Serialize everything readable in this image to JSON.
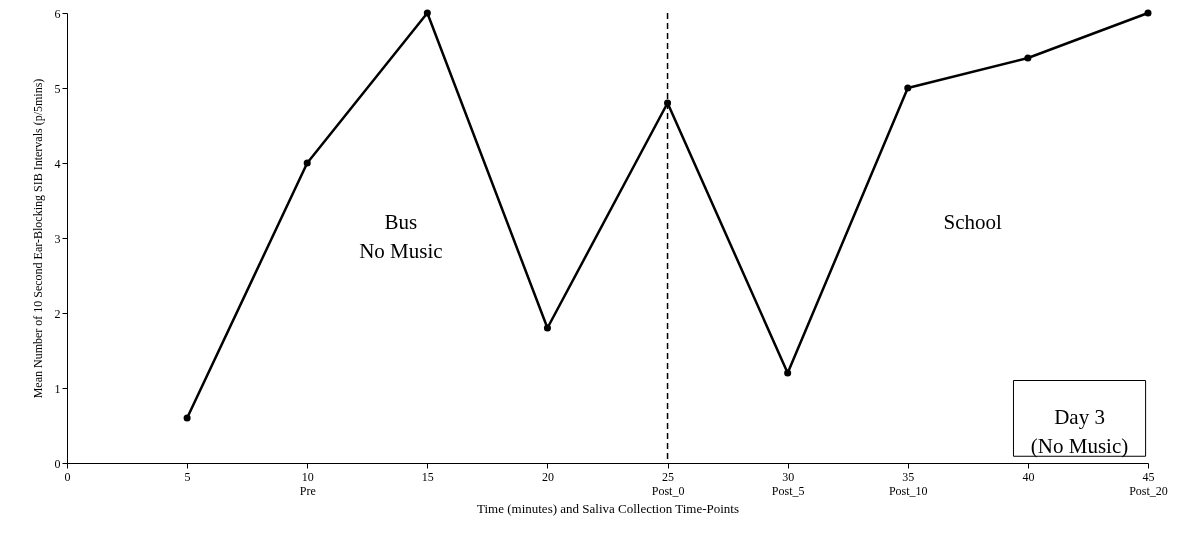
{
  "chart_data": {
    "type": "line",
    "xlabel": "Time (minutes) and Saliva Collection Time-Points",
    "ylabel": "Mean Number of 10 Second Ear-Blocking SIB Intervals (p/5mins)",
    "x": [
      5,
      10,
      15,
      20,
      25,
      30,
      35,
      40,
      45
    ],
    "series": [
      {
        "color": "#000000",
        "values": [
          0.6,
          4.0,
          6.0,
          1.8,
          4.8,
          1.2,
          5.0,
          5.4,
          6.0
        ]
      }
    ],
    "xlim": [
      0,
      45
    ],
    "xticks": [
      0,
      5,
      {
        "value": 10,
        "label": "10\nPre"
      },
      15,
      20,
      {
        "value": 25,
        "label": "25\nPost_0"
      },
      {
        "value": 30,
        "label": "30\nPost_5"
      },
      {
        "value": 35,
        "label": "35\nPost_10"
      },
      40,
      {
        "value": 45,
        "label": "45\nPost_20"
      }
    ],
    "ylim": [
      0,
      6
    ],
    "yticks": [
      0,
      1,
      2,
      3,
      4,
      5,
      6
    ],
    "ref_lines": [
      {
        "axis": "x",
        "value": 25,
        "color": "#000000",
        "line_style": "dashed"
      }
    ],
    "annotations": [
      "Bus\nNo Music",
      "School",
      "Day 3\n(No Music)"
    ],
    "grid": false,
    "marker": "circle",
    "line_style": "solid"
  }
}
